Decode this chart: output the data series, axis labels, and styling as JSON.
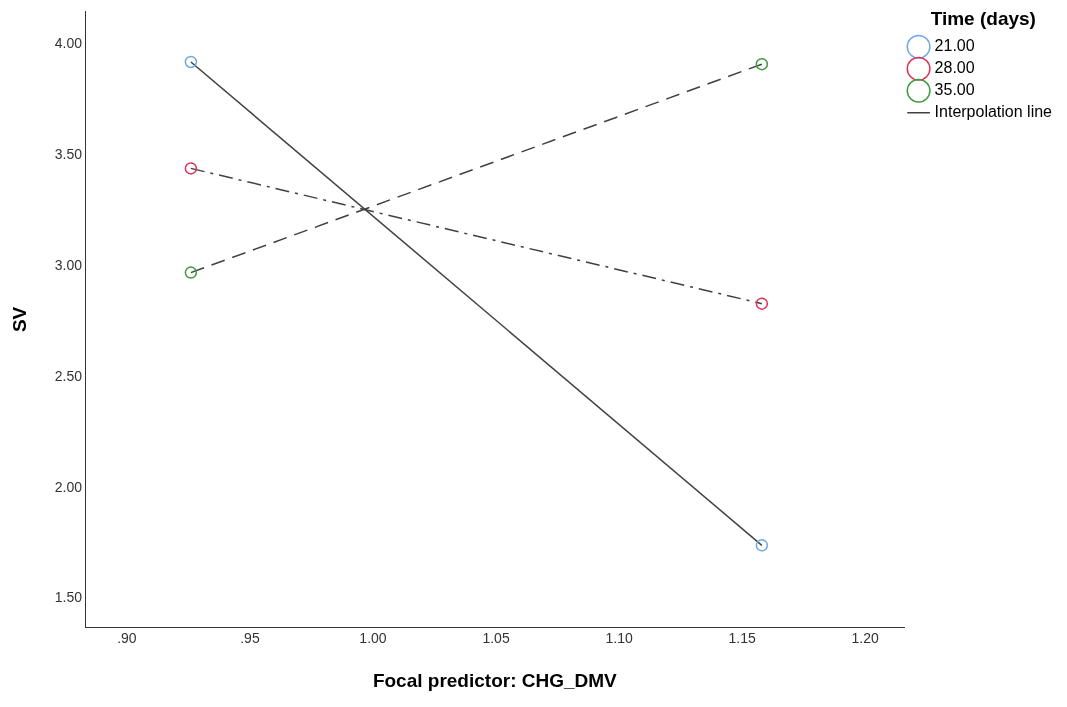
{
  "chart_data": {
    "type": "line",
    "xlabel": "Focal predictor: CHG_DMV",
    "ylabel": "SV",
    "legend_title": "Time (days)",
    "x": [
      0.926,
      1.158
    ],
    "series": [
      {
        "name": "21.00",
        "color": "#6fa8e6",
        "values": [
          3.92,
          1.74
        ],
        "line_style": "solid"
      },
      {
        "name": "28.00",
        "color": "#e0315a",
        "values": [
          3.44,
          2.83
        ],
        "line_style": "dashdot"
      },
      {
        "name": "35.00",
        "color": "#3d9a3d",
        "values": [
          2.97,
          3.91
        ],
        "line_style": "dashed"
      },
      {
        "name": "Interpolation line",
        "color": "#404040",
        "values": [
          null,
          null
        ],
        "marker": "none"
      }
    ],
    "xlim": [
      0.883,
      1.216
    ],
    "xticks": [
      {
        "value": 0.9,
        "label": ".90"
      },
      {
        "value": 0.95,
        "label": ".95"
      },
      {
        "value": 1.0,
        "label": "1.00"
      },
      {
        "value": 1.05,
        "label": "1.05"
      },
      {
        "value": 1.1,
        "label": "1.10"
      },
      {
        "value": 1.15,
        "label": "1.15"
      },
      {
        "value": 1.2,
        "label": "1.20"
      }
    ],
    "ylim": [
      1.37,
      4.148
    ],
    "yticks": [
      {
        "value": 1.5,
        "label": "1.50"
      },
      {
        "value": 2.0,
        "label": "2.00"
      },
      {
        "value": 2.5,
        "label": "2.50"
      },
      {
        "value": 3.0,
        "label": "3.00"
      },
      {
        "value": 3.5,
        "label": "3.50"
      },
      {
        "value": 4.0,
        "label": "4.00"
      }
    ],
    "grid": false,
    "legend": "top right",
    "marker": "circle"
  }
}
